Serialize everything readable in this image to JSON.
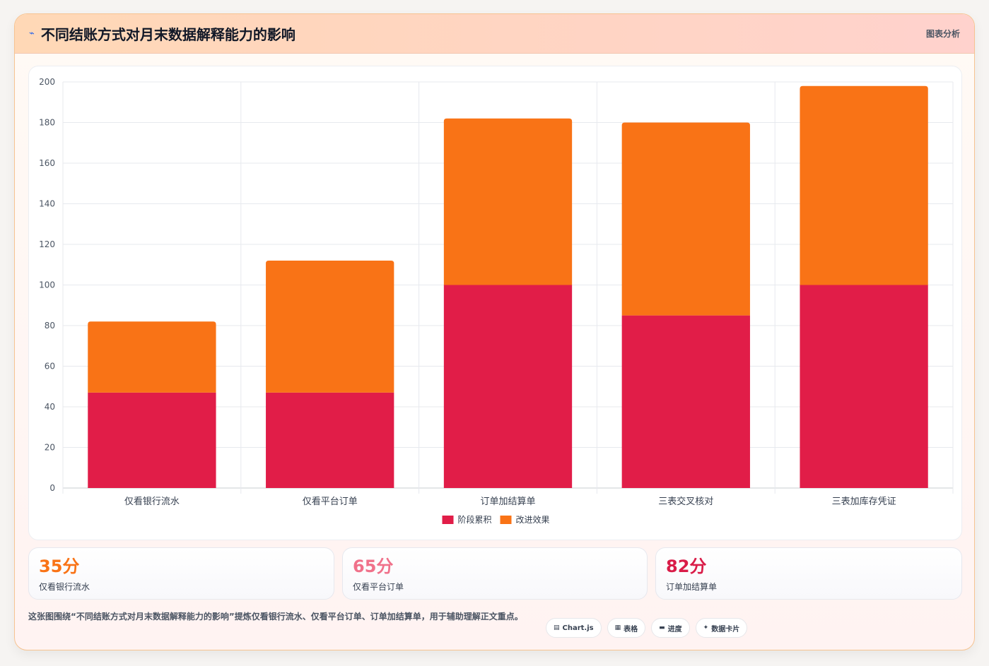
{
  "header": {
    "icon": "chart-line-icon",
    "icon_glyph": "⌁",
    "title": "不同结账方式对月末数据解释能力的影响",
    "tag": "图表分析"
  },
  "chart_data": {
    "type": "bar",
    "stacked": true,
    "categories": [
      "仅看银行流水",
      "仅看平台订单",
      "订单加结算单",
      "三表交叉核对",
      "三表加库存凭证"
    ],
    "series": [
      {
        "name": "阶段累积",
        "color": "#e11d48",
        "values": [
          47,
          47,
          100,
          85,
          100
        ]
      },
      {
        "name": "改进效果",
        "color": "#f97316",
        "values": [
          35,
          65,
          82,
          95,
          98
        ]
      }
    ],
    "ylim": [
      0,
      200
    ],
    "yticks": [
      0,
      20,
      40,
      60,
      80,
      100,
      120,
      140,
      160,
      180,
      200
    ],
    "grid": true,
    "legend": "bottom"
  },
  "stats": [
    {
      "value": "35分",
      "label": "仅看银行流水",
      "color": "#f97316"
    },
    {
      "value": "65分",
      "label": "仅看平台订单",
      "color": "#f0718a"
    },
    {
      "value": "82分",
      "label": "订单加结算单",
      "color": "#d91c48"
    }
  ],
  "footer": {
    "text": "这张图围绕“不同结账方式对月末数据解释能力的影响”提炼仅看银行流水、仅看平台订单、订单加结算单，用于辅助理解正文重点。"
  },
  "chips": [
    {
      "icon": "chart-icon",
      "glyph": "▤",
      "label": "Chart.js"
    },
    {
      "icon": "table-icon",
      "glyph": "▦",
      "label": "表格"
    },
    {
      "icon": "progress-icon",
      "glyph": "▬",
      "label": "进度"
    },
    {
      "icon": "sparkle-icon",
      "glyph": "✦",
      "label": "数据卡片"
    }
  ]
}
